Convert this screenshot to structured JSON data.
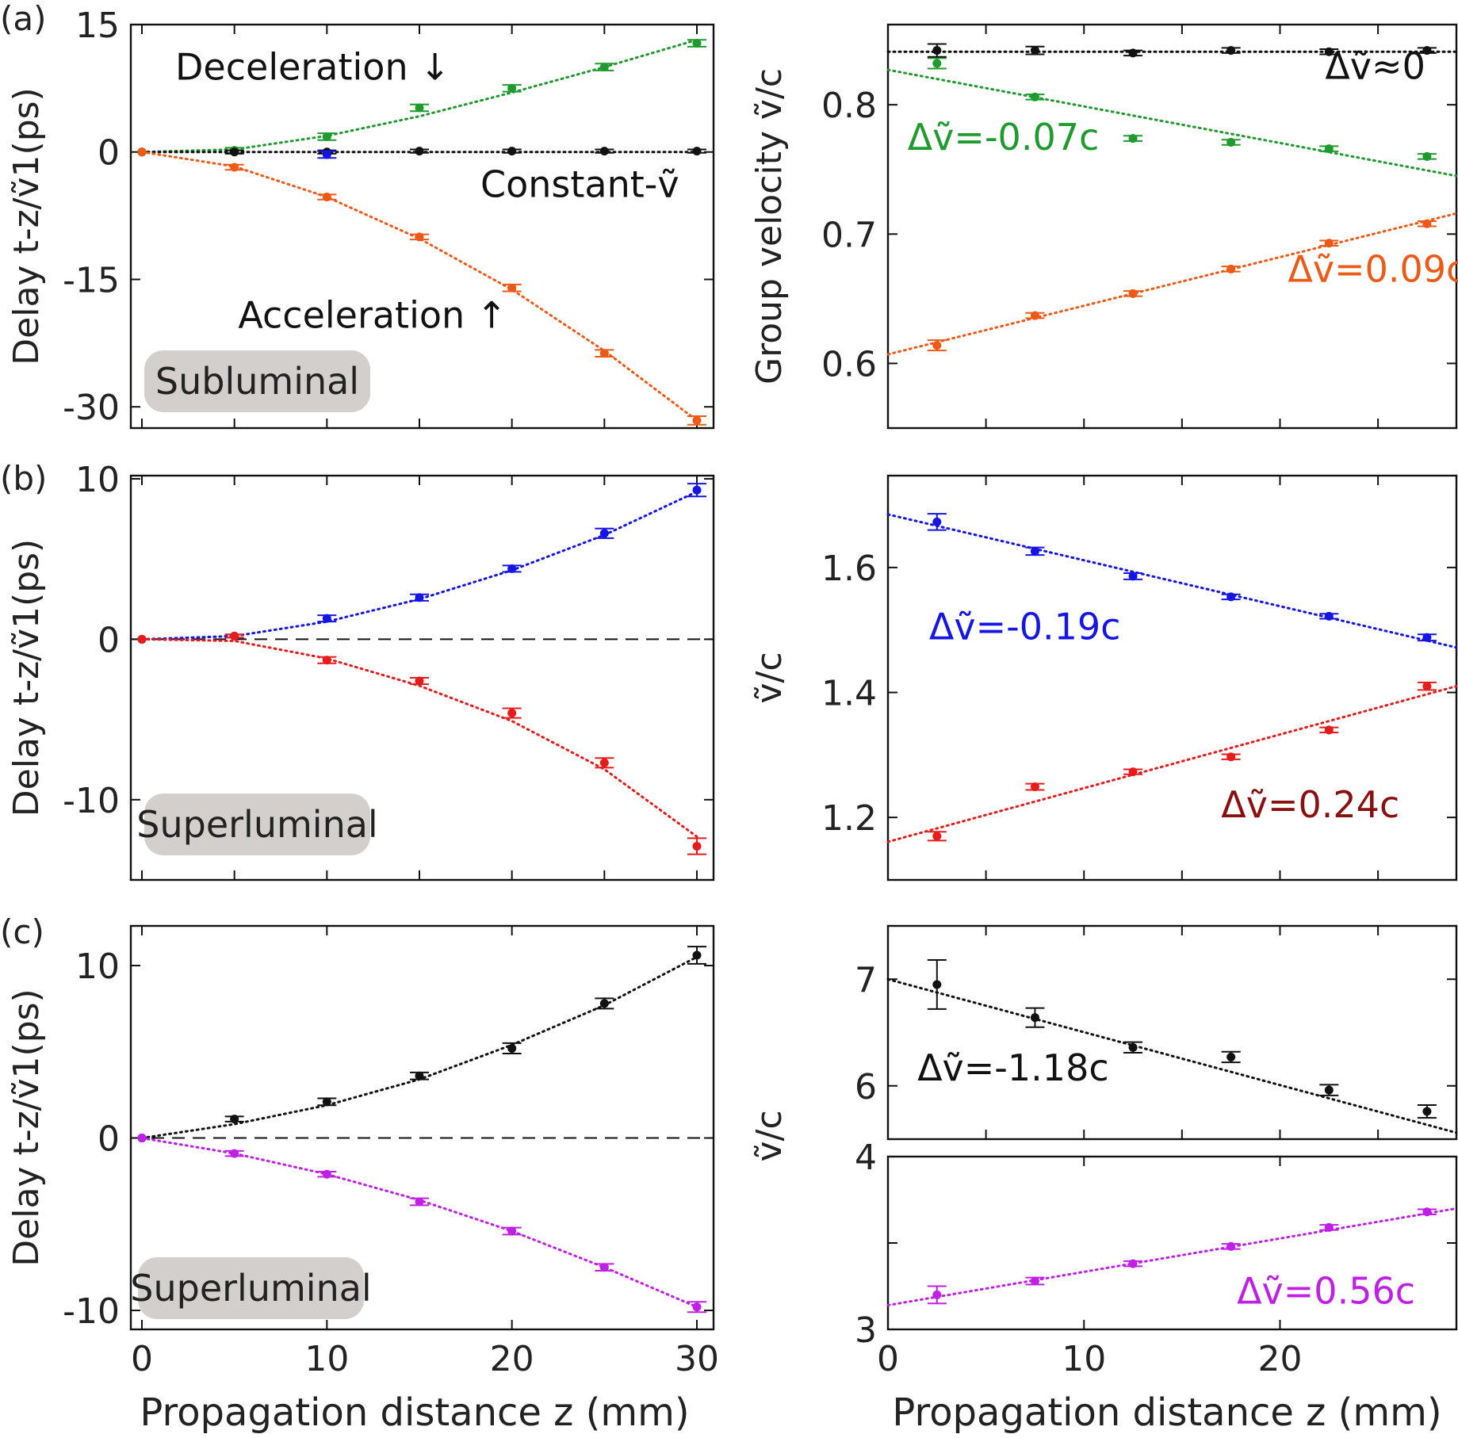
{
  "figure": {
    "panel_labels": [
      "(a)",
      "(b)",
      "(c)"
    ],
    "xlabel_left": "Propagation distance z (mm)",
    "xlabel_right": "Propagation distance z (mm)"
  },
  "colors": {
    "green": "#1f9a2e",
    "black": "#111111",
    "orange": "#ee5a16",
    "blue": "#1515e6",
    "red": "#e81b1b",
    "purple": "#c020e6",
    "badge": "#d3cfcd"
  },
  "chart_data": [
    {
      "id": "a-left",
      "type": "line",
      "title": "",
      "xlabel": "",
      "ylabel": "Delay t-z/ṽ1(ps)",
      "xlim": [
        -0.6,
        30.9
      ],
      "ylim": [
        -32.5,
        15.0
      ],
      "xticks": [
        0,
        5,
        10,
        15,
        20,
        25,
        30
      ],
      "xticklabels": [
        "",
        "",
        "",
        "",
        "",
        "",
        ""
      ],
      "yticks": [
        15,
        0,
        -15,
        -30
      ],
      "yticklabels": [
        "15",
        "0",
        "-15",
        "-30"
      ],
      "hlines": [],
      "series": [
        {
          "name": "Deceleration",
          "color": "green",
          "x": [
            0,
            5,
            10,
            15,
            20,
            25,
            30
          ],
          "y": [
            0,
            0.2,
            1.8,
            5.2,
            7.5,
            10.0,
            12.8
          ],
          "err": [
            0,
            0.3,
            0.4,
            0.4,
            0.4,
            0.4,
            0.4
          ],
          "fit": [
            [
              0,
              0
            ],
            [
              5,
              0.3
            ],
            [
              10,
              1.9
            ],
            [
              15,
              4.2
            ],
            [
              20,
              7.0
            ],
            [
              25,
              10.0
            ],
            [
              30,
              13.2
            ]
          ]
        },
        {
          "name": "Constant",
          "color": "black",
          "x": [
            0,
            5,
            10,
            15,
            20,
            25,
            30
          ],
          "y": [
            0,
            0,
            0,
            0.1,
            0.1,
            0.1,
            0.1
          ],
          "err": [
            0,
            0.2,
            0.2,
            0.2,
            0.2,
            0.2,
            0.2
          ],
          "fit": [
            [
              0,
              0
            ],
            [
              30,
              0
            ]
          ]
        },
        {
          "name": "Constant (blue)",
          "color": "blue",
          "x": [
            10
          ],
          "y": [
            -0.3
          ],
          "err": [
            0.4
          ],
          "fit": []
        },
        {
          "name": "Acceleration",
          "color": "orange",
          "x": [
            0,
            5,
            10,
            15,
            20,
            25,
            30
          ],
          "y": [
            0,
            -1.8,
            -5.3,
            -10.0,
            -16.0,
            -23.7,
            -31.6
          ],
          "err": [
            0,
            0.3,
            0.3,
            0.3,
            0.4,
            0.4,
            0.5
          ],
          "fit": [
            [
              0,
              0
            ],
            [
              5,
              -1.7
            ],
            [
              10,
              -5.3
            ],
            [
              15,
              -10.2
            ],
            [
              20,
              -16.2
            ],
            [
              25,
              -23.4
            ],
            [
              30,
              -31.6
            ]
          ]
        }
      ],
      "annotations": [
        {
          "text": "Deceleration ↓",
          "x": 1.8,
          "y": 8.5,
          "color": "black"
        },
        {
          "text": "Constant-ṽ",
          "x": 18.3,
          "y": -5.3,
          "color": "black"
        },
        {
          "text": "Acceleration ↑",
          "x": 5.2,
          "y": -20.7,
          "color": "black"
        }
      ],
      "badge": "Subluminal"
    },
    {
      "id": "a-right",
      "type": "line",
      "title": "",
      "xlabel": "",
      "ylabel": "Group velocity ṽ/c",
      "xlim": [
        0,
        29.0
      ],
      "ylim": [
        0.55,
        0.862
      ],
      "xticks": [
        0,
        5,
        10,
        15,
        20,
        25
      ],
      "xticklabels": [
        "",
        "",
        "",
        "",
        "",
        ""
      ],
      "yticks": [
        0.8,
        0.7,
        0.6
      ],
      "yticklabels": [
        "0.8",
        "0.7",
        "0.6"
      ],
      "hlines": [],
      "series": [
        {
          "name": "Deceleration",
          "color": "green",
          "x": [
            2.5,
            7.5,
            12.5,
            17.5,
            22.5,
            27.5
          ],
          "y": [
            0.832,
            0.806,
            0.774,
            0.771,
            0.766,
            0.76
          ],
          "err": [
            0.004,
            0.002,
            0.002,
            0.002,
            0.002,
            0.002
          ],
          "fit": [
            [
              0,
              0.827
            ],
            [
              29,
              0.745
            ]
          ]
        },
        {
          "name": "Constant",
          "color": "black",
          "x": [
            2.5,
            7.5,
            12.5,
            17.5,
            22.5,
            27.5
          ],
          "y": [
            0.842,
            0.842,
            0.84,
            0.842,
            0.841,
            0.842
          ],
          "err": [
            0.005,
            0.003,
            0.002,
            0.002,
            0.002,
            0.002
          ],
          "fit": [
            [
              0,
              0.841
            ],
            [
              29,
              0.841
            ]
          ]
        },
        {
          "name": "Acceleration",
          "color": "orange",
          "x": [
            2.5,
            7.5,
            12.5,
            17.5,
            22.5,
            27.5
          ],
          "y": [
            0.614,
            0.637,
            0.654,
            0.673,
            0.693,
            0.708
          ],
          "err": [
            0.004,
            0.002,
            0.002,
            0.002,
            0.002,
            0.002
          ],
          "fit": [
            [
              0,
              0.607
            ],
            [
              29,
              0.716
            ]
          ]
        }
      ],
      "annotations": [
        {
          "text": "Δṽ≈0",
          "x": 22.3,
          "y": 0.82,
          "color": "black"
        },
        {
          "text": "Δṽ=-0.07c",
          "x": 1.0,
          "y": 0.765,
          "color": "green"
        },
        {
          "text": "Δṽ=0.09c",
          "x": 20.4,
          "y": 0.663,
          "color": "orange"
        }
      ]
    },
    {
      "id": "b-left",
      "type": "line",
      "title": "",
      "xlabel": "",
      "ylabel": "Delay t-z/ṽ1(ps)",
      "xlim": [
        -0.6,
        30.9
      ],
      "ylim": [
        -15.0,
        10.2
      ],
      "xticks": [
        0,
        5,
        10,
        15,
        20,
        25,
        30
      ],
      "xticklabels": [
        "",
        "",
        "",
        "",
        "",
        "",
        ""
      ],
      "yticks": [
        10,
        0,
        -10
      ],
      "yticklabels": [
        "10",
        "0",
        "-10"
      ],
      "hlines": [
        0
      ],
      "series": [
        {
          "name": "Deceleration",
          "color": "blue",
          "x": [
            0,
            5,
            10,
            15,
            20,
            25,
            30
          ],
          "y": [
            0,
            0.2,
            1.3,
            2.6,
            4.4,
            6.6,
            9.3
          ],
          "err": [
            0,
            0.1,
            0.2,
            0.2,
            0.2,
            0.3,
            0.4
          ],
          "fit": [
            [
              0,
              0
            ],
            [
              5,
              0.2
            ],
            [
              10,
              1.1
            ],
            [
              15,
              2.5
            ],
            [
              20,
              4.3
            ],
            [
              25,
              6.5
            ],
            [
              30,
              9.2
            ]
          ]
        },
        {
          "name": "Acceleration",
          "color": "red",
          "x": [
            0,
            5,
            10,
            15,
            20,
            25,
            30
          ],
          "y": [
            0,
            0.2,
            -1.3,
            -2.6,
            -4.6,
            -7.7,
            -12.9
          ],
          "err": [
            0,
            0.1,
            0.2,
            0.2,
            0.3,
            0.3,
            0.5
          ],
          "fit": [
            [
              0,
              0
            ],
            [
              5,
              -0.1
            ],
            [
              10,
              -1.2
            ],
            [
              15,
              -2.9
            ],
            [
              20,
              -5.1
            ],
            [
              25,
              -8.1
            ],
            [
              30,
              -12.3
            ]
          ]
        }
      ],
      "annotations": [],
      "badge": "Superluminal"
    },
    {
      "id": "b-right",
      "type": "line",
      "title": "",
      "xlabel": "",
      "ylabel": "ṽ/c",
      "xlim": [
        0,
        29.0
      ],
      "ylim": [
        1.1,
        1.747
      ],
      "xticks": [
        0,
        5,
        10,
        15,
        20,
        25
      ],
      "xticklabels": [
        "",
        "",
        "",
        "",
        "",
        ""
      ],
      "yticks": [
        1.6,
        1.4,
        1.2
      ],
      "yticklabels": [
        "1.6",
        "1.4",
        "1.2"
      ],
      "hlines": [],
      "series": [
        {
          "name": "Deceleration",
          "color": "blue",
          "x": [
            2.5,
            7.5,
            12.5,
            17.5,
            22.5,
            27.5
          ],
          "y": [
            1.673,
            1.626,
            1.586,
            1.553,
            1.522,
            1.488
          ],
          "err": [
            0.013,
            0.006,
            0.005,
            0.004,
            0.004,
            0.005
          ],
          "fit": [
            [
              0,
              1.685
            ],
            [
              29,
              1.472
            ]
          ]
        },
        {
          "name": "Acceleration",
          "color": "red",
          "x": [
            2.5,
            7.5,
            12.5,
            17.5,
            22.5,
            27.5
          ],
          "y": [
            1.17,
            1.249,
            1.273,
            1.297,
            1.34,
            1.41
          ],
          "err": [
            0.007,
            0.005,
            0.004,
            0.004,
            0.004,
            0.006
          ],
          "fit": [
            [
              0,
              1.161
            ],
            [
              29,
              1.41
            ]
          ]
        }
      ],
      "annotations": [
        {
          "text": "Δṽ=-0.19c",
          "x": 2.1,
          "y": 1.485,
          "color": "blue"
        },
        {
          "text": "Δṽ=0.24c",
          "x": 17.0,
          "y": 1.2,
          "color": "darkred"
        }
      ]
    },
    {
      "id": "c-left",
      "type": "line",
      "title": "",
      "xlabel": "Propagation distance z (mm)",
      "ylabel": "Delay t-z/ṽ1(ps)",
      "xlim": [
        -0.6,
        30.9
      ],
      "ylim": [
        -11.1,
        12.3
      ],
      "xticks": [
        0,
        10,
        20,
        30
      ],
      "xticklabels": [
        "0",
        "10",
        "20",
        "30"
      ],
      "yticks": [
        10,
        0,
        -10
      ],
      "yticklabels": [
        "10",
        "0",
        "-10"
      ],
      "hlines": [
        0
      ],
      "series": [
        {
          "name": "Deceleration",
          "color": "black",
          "x": [
            0,
            5,
            10,
            15,
            20,
            25,
            30
          ],
          "y": [
            0,
            1.1,
            2.1,
            3.6,
            5.2,
            7.8,
            10.6
          ],
          "err": [
            0,
            0.15,
            0.2,
            0.2,
            0.3,
            0.3,
            0.5
          ],
          "fit": [
            [
              0,
              0
            ],
            [
              5,
              0.8
            ],
            [
              10,
              1.9
            ],
            [
              15,
              3.4
            ],
            [
              20,
              5.4
            ],
            [
              25,
              7.7
            ],
            [
              30,
              10.5
            ]
          ]
        },
        {
          "name": "Acceleration",
          "color": "purple",
          "x": [
            0,
            5,
            10,
            15,
            20,
            25,
            30
          ],
          "y": [
            0,
            -0.9,
            -2.1,
            -3.7,
            -5.4,
            -7.5,
            -9.8
          ],
          "err": [
            0,
            0.15,
            0.15,
            0.2,
            0.2,
            0.2,
            0.3
          ],
          "fit": [
            [
              0,
              0
            ],
            [
              5,
              -0.9
            ],
            [
              10,
              -2.1
            ],
            [
              15,
              -3.6
            ],
            [
              20,
              -5.4
            ],
            [
              25,
              -7.5
            ],
            [
              30,
              -9.8
            ]
          ]
        }
      ],
      "annotations": [],
      "badge": "Superluminal"
    },
    {
      "id": "c-right-top",
      "type": "line",
      "title": "",
      "xlabel": "",
      "ylabel": "ṽ/c",
      "xlim": [
        0,
        29.0
      ],
      "ylim": [
        5.5,
        7.5
      ],
      "xticks": [
        0,
        5,
        10,
        15,
        20,
        25
      ],
      "xticklabels": [
        "",
        "",
        "",
        "",
        "",
        ""
      ],
      "yticks": [
        7,
        6
      ],
      "yticklabels": [
        "7",
        "6"
      ],
      "hlines": [],
      "series": [
        {
          "name": "Deceleration",
          "color": "black",
          "x": [
            2.5,
            7.5,
            12.5,
            17.5,
            22.5,
            27.5
          ],
          "y": [
            6.95,
            6.64,
            6.36,
            6.27,
            5.96,
            5.76
          ],
          "err": [
            0.23,
            0.09,
            0.05,
            0.05,
            0.05,
            0.06
          ],
          "fit": [
            [
              0,
              7.0
            ],
            [
              29,
              5.56
            ]
          ]
        }
      ],
      "annotations": [
        {
          "text": "Δṽ=-1.18c",
          "x": 1.5,
          "y": 6.05,
          "color": "black"
        }
      ]
    },
    {
      "id": "c-right-bottom",
      "type": "line",
      "title": "",
      "xlabel": "Propagation distance z (mm)",
      "ylabel": "",
      "xlim": [
        0,
        29.0
      ],
      "ylim": [
        3.0,
        4.0
      ],
      "xticks": [
        0,
        10,
        20
      ],
      "xticklabels": [
        "0",
        "10",
        "20"
      ],
      "yticks": [
        4,
        3
      ],
      "yticklabels": [
        "4",
        "3"
      ],
      "hlines": [],
      "series": [
        {
          "name": "Acceleration",
          "color": "purple",
          "x": [
            2.5,
            7.5,
            12.5,
            17.5,
            22.5,
            27.5
          ],
          "y": [
            3.2,
            3.28,
            3.38,
            3.48,
            3.59,
            3.68
          ],
          "err": [
            0.05,
            0.02,
            0.015,
            0.015,
            0.015,
            0.015
          ],
          "fit": [
            [
              0,
              3.14
            ],
            [
              29,
              3.7
            ]
          ]
        }
      ],
      "annotations": [
        {
          "text": "Δṽ=0.56c",
          "x": 17.8,
          "y": 3.15,
          "color": "purple"
        }
      ]
    }
  ]
}
